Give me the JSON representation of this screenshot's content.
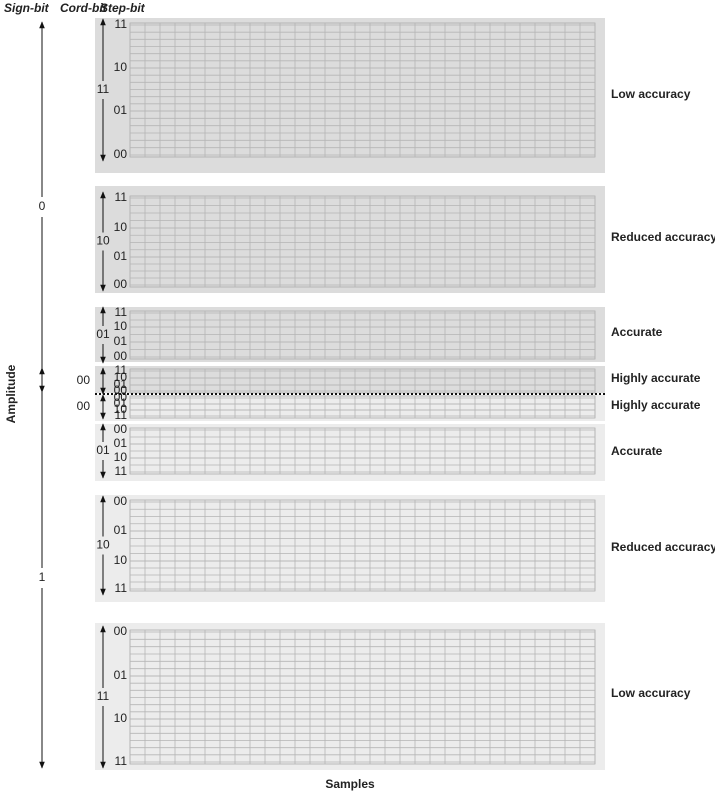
{
  "header": {
    "sign_bit": "Sign-bit",
    "cord_bit": "Cord-bit",
    "step_bit": "Step-bit"
  },
  "axis": {
    "y_label": "Amplitude",
    "x_label": "Samples"
  },
  "signs": [
    "0",
    "1"
  ],
  "segments": [
    {
      "cord": "11",
      "steps": [
        "11",
        "10",
        "01",
        "00"
      ],
      "label": "Low accuracy"
    },
    {
      "cord": "10",
      "steps": [
        "11",
        "10",
        "01",
        "00"
      ],
      "label": "Reduced accuracy"
    },
    {
      "cord": "01",
      "steps": [
        "11",
        "10",
        "01",
        "00"
      ],
      "label": "Accurate"
    },
    {
      "cord": "00",
      "steps": [
        "11",
        "10",
        "01",
        "00"
      ],
      "label": "Highly accurate"
    },
    {
      "cord": "00",
      "steps": [
        "00",
        "01",
        "10",
        "11"
      ],
      "label": "Highly accurate"
    },
    {
      "cord": "01",
      "steps": [
        "00",
        "01",
        "10",
        "11"
      ],
      "label": "Accurate"
    },
    {
      "cord": "10",
      "steps": [
        "00",
        "01",
        "10",
        "11"
      ],
      "label": "Reduced accuracy"
    },
    {
      "cord": "11",
      "steps": [
        "00",
        "01",
        "10",
        "11"
      ],
      "label": "Low accuracy"
    }
  ]
}
